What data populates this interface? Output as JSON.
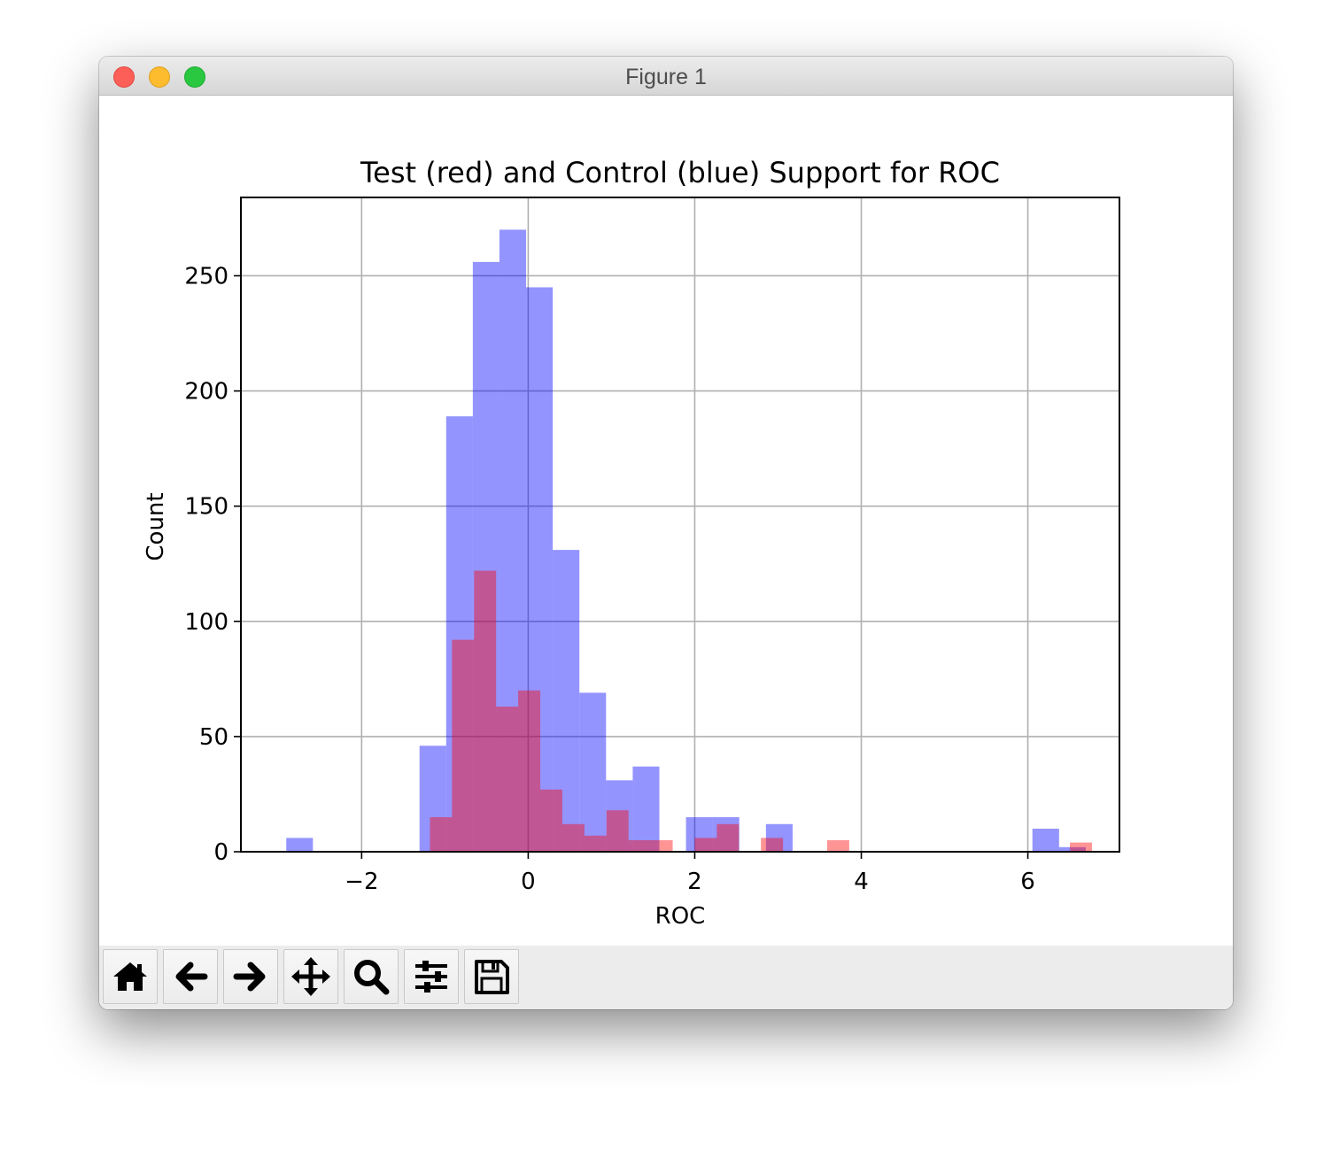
{
  "window": {
    "title": "Figure 1"
  },
  "toolbar": {
    "buttons": [
      {
        "name": "home-button",
        "icon": "home-icon"
      },
      {
        "name": "back-button",
        "icon": "arrow-left-icon"
      },
      {
        "name": "forward-button",
        "icon": "arrow-right-icon"
      },
      {
        "name": "pan-button",
        "icon": "move-icon"
      },
      {
        "name": "zoom-button",
        "icon": "magnifier-icon"
      },
      {
        "name": "configure-subplots-button",
        "icon": "sliders-icon"
      },
      {
        "name": "save-button",
        "icon": "floppy-disk-icon"
      }
    ]
  },
  "chart_data": {
    "type": "bar",
    "title": "Test (red) and Control (blue) Support for ROC",
    "xlabel": "ROC",
    "ylabel": "Count",
    "xlim": [
      -3.45,
      7.1
    ],
    "ylim": [
      0,
      284
    ],
    "xticks": [
      -2,
      0,
      2,
      4,
      6
    ],
    "xtick_labels": [
      "−2",
      "0",
      "2",
      "4",
      "6"
    ],
    "yticks": [
      0,
      50,
      100,
      150,
      200,
      250
    ],
    "ytick_labels": [
      "0",
      "50",
      "100",
      "150",
      "200",
      "250"
    ],
    "grid": true,
    "legend": "none",
    "series": [
      {
        "color": "#0000ff",
        "alpha": 0.42,
        "bin_start": -2.905,
        "bin_width": 0.32,
        "counts": [
          6,
          0,
          0,
          0,
          0,
          46,
          189,
          256,
          270,
          245,
          131,
          69,
          31,
          37,
          0,
          15,
          15,
          0,
          12,
          0,
          0,
          0,
          0,
          0,
          0,
          0,
          0,
          0,
          10,
          2
        ]
      },
      {
        "color": "#ff0000",
        "alpha": 0.42,
        "bin_start": -1.18,
        "bin_width": 0.265,
        "counts": [
          15,
          92,
          122,
          63,
          70,
          27,
          12,
          7,
          18,
          5,
          5,
          0,
          6,
          12,
          0,
          6,
          0,
          0,
          5,
          0,
          0,
          0,
          0,
          0,
          0,
          0,
          0,
          0,
          0,
          4
        ]
      }
    ]
  }
}
